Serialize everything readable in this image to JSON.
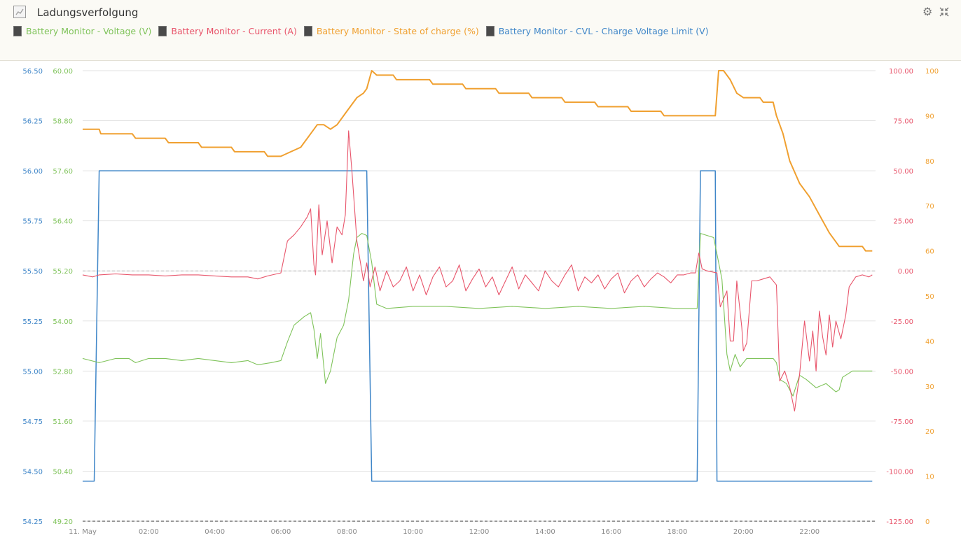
{
  "header": {
    "title": "Ladungsverfolgung",
    "settings_icon": "gear-icon",
    "collapse_icon": "collapse-icon"
  },
  "legend": [
    {
      "label": "Battery Monitor - Voltage (V)",
      "color": "#7fc35a"
    },
    {
      "label": "Battery Monitor - Current (A)",
      "color": "#e8556b"
    },
    {
      "label": "Battery Monitor - State of charge (%)",
      "color": "#f0a030"
    },
    {
      "label": "Battery Monitor - CVL - Charge Voltage Limit (V)",
      "color": "#3f86c8"
    }
  ],
  "chart_data": {
    "type": "line",
    "x_unit": "hours",
    "xlim": [
      0,
      24
    ],
    "x_ticks": [
      {
        "v": 0,
        "label": "11. May"
      },
      {
        "v": 2,
        "label": "02:00"
      },
      {
        "v": 4,
        "label": "04:00"
      },
      {
        "v": 6,
        "label": "06:00"
      },
      {
        "v": 8,
        "label": "08:00"
      },
      {
        "v": 10,
        "label": "10:00"
      },
      {
        "v": 12,
        "label": "12:00"
      },
      {
        "v": 14,
        "label": "14:00"
      },
      {
        "v": 16,
        "label": "16:00"
      },
      {
        "v": 18,
        "label": "18:00"
      },
      {
        "v": 20,
        "label": "20:00"
      },
      {
        "v": 22,
        "label": "22:00"
      }
    ],
    "axes": {
      "cvl": {
        "min": 54.25,
        "max": 56.5,
        "ticks": [
          "56.50",
          "56.25",
          "56.00",
          "55.75",
          "55.50",
          "55.25",
          "55.00",
          "54.75",
          "54.50",
          "54.25"
        ],
        "color": "#3f86c8"
      },
      "voltage": {
        "min": 49.2,
        "max": 60.0,
        "ticks": [
          "60.00",
          "58.80",
          "57.60",
          "56.40",
          "55.20",
          "54.00",
          "52.80",
          "51.60",
          "50.40",
          "49.20"
        ],
        "color": "#7fc35a"
      },
      "current": {
        "min": -125,
        "max": 100,
        "ticks": [
          "100.00",
          "75.00",
          "50.00",
          "25.00",
          "0.00",
          "-25.00",
          "-50.00",
          "-75.00",
          "-100.00",
          "-125.00"
        ],
        "color": "#e8556b"
      },
      "soc": {
        "min": 0,
        "max": 100,
        "ticks": [
          "100",
          "90",
          "80",
          "70",
          "60",
          "50",
          "40",
          "30",
          "20",
          "10",
          "0"
        ],
        "color": "#f0a030"
      }
    },
    "series": [
      {
        "name": "Battery Monitor - CVL - Charge Voltage Limit (V)",
        "axis": "cvl",
        "color": "#3f86c8",
        "points": [
          [
            0,
            54.45
          ],
          [
            0.35,
            54.45
          ],
          [
            0.5,
            56.0
          ],
          [
            8.6,
            56.0
          ],
          [
            8.75,
            54.45
          ],
          [
            18.6,
            54.45
          ],
          [
            18.7,
            56.0
          ],
          [
            19.15,
            56.0
          ],
          [
            19.2,
            54.45
          ],
          [
            23.9,
            54.45
          ]
        ]
      },
      {
        "name": "Battery Monitor - Voltage (V)",
        "axis": "voltage",
        "color": "#7fc35a",
        "points": [
          [
            0,
            53.1
          ],
          [
            0.5,
            53.0
          ],
          [
            1.0,
            53.1
          ],
          [
            1.4,
            53.1
          ],
          [
            1.6,
            53.0
          ],
          [
            2.0,
            53.1
          ],
          [
            2.5,
            53.1
          ],
          [
            3.0,
            53.05
          ],
          [
            3.5,
            53.1
          ],
          [
            4.0,
            53.05
          ],
          [
            4.5,
            53.0
          ],
          [
            5.0,
            53.05
          ],
          [
            5.3,
            52.95
          ],
          [
            5.7,
            53.0
          ],
          [
            6.0,
            53.05
          ],
          [
            6.2,
            53.5
          ],
          [
            6.4,
            53.9
          ],
          [
            6.7,
            54.1
          ],
          [
            6.9,
            54.2
          ],
          [
            7.0,
            53.8
          ],
          [
            7.1,
            53.1
          ],
          [
            7.2,
            53.7
          ],
          [
            7.35,
            52.5
          ],
          [
            7.5,
            52.8
          ],
          [
            7.7,
            53.6
          ],
          [
            7.9,
            53.9
          ],
          [
            8.05,
            54.5
          ],
          [
            8.2,
            55.6
          ],
          [
            8.3,
            56.0
          ],
          [
            8.45,
            56.1
          ],
          [
            8.6,
            56.05
          ],
          [
            8.75,
            55.4
          ],
          [
            8.9,
            54.4
          ],
          [
            9.2,
            54.3
          ],
          [
            10,
            54.35
          ],
          [
            11,
            54.35
          ],
          [
            12,
            54.3
          ],
          [
            13,
            54.35
          ],
          [
            14,
            54.3
          ],
          [
            15,
            54.35
          ],
          [
            16,
            54.3
          ],
          [
            17,
            54.35
          ],
          [
            18,
            54.3
          ],
          [
            18.6,
            54.3
          ],
          [
            18.7,
            56.1
          ],
          [
            19.1,
            56.0
          ],
          [
            19.35,
            55.0
          ],
          [
            19.5,
            53.2
          ],
          [
            19.6,
            52.8
          ],
          [
            19.75,
            53.2
          ],
          [
            19.9,
            52.9
          ],
          [
            20.1,
            53.1
          ],
          [
            20.5,
            53.1
          ],
          [
            20.9,
            53.1
          ],
          [
            21.0,
            53.0
          ],
          [
            21.1,
            52.6
          ],
          [
            21.3,
            52.5
          ],
          [
            21.5,
            52.2
          ],
          [
            21.7,
            52.7
          ],
          [
            21.9,
            52.6
          ],
          [
            22.2,
            52.4
          ],
          [
            22.5,
            52.5
          ],
          [
            22.8,
            52.3
          ],
          [
            22.9,
            52.35
          ],
          [
            23.0,
            52.65
          ],
          [
            23.3,
            52.8
          ],
          [
            23.6,
            52.8
          ],
          [
            23.9,
            52.8
          ]
        ]
      },
      {
        "name": "Battery Monitor - Current (A)",
        "axis": "current",
        "color": "#e8556b",
        "points": [
          [
            0,
            -2
          ],
          [
            0.3,
            -3
          ],
          [
            0.5,
            -2
          ],
          [
            1.0,
            -1.5
          ],
          [
            1.5,
            -2
          ],
          [
            2.0,
            -2
          ],
          [
            2.5,
            -2.5
          ],
          [
            3.0,
            -2
          ],
          [
            3.5,
            -2
          ],
          [
            4.0,
            -2.5
          ],
          [
            4.5,
            -3
          ],
          [
            5.0,
            -3
          ],
          [
            5.3,
            -4
          ],
          [
            5.6,
            -2.5
          ],
          [
            6.0,
            -1
          ],
          [
            6.2,
            15
          ],
          [
            6.4,
            18
          ],
          [
            6.6,
            22
          ],
          [
            6.8,
            27
          ],
          [
            6.9,
            31
          ],
          [
            7.0,
            3
          ],
          [
            7.05,
            -2
          ],
          [
            7.15,
            33
          ],
          [
            7.25,
            8
          ],
          [
            7.4,
            25
          ],
          [
            7.55,
            4
          ],
          [
            7.7,
            22
          ],
          [
            7.85,
            18
          ],
          [
            7.95,
            28
          ],
          [
            8.05,
            70
          ],
          [
            8.15,
            50
          ],
          [
            8.3,
            15
          ],
          [
            8.5,
            -5
          ],
          [
            8.6,
            4
          ],
          [
            8.7,
            -8
          ],
          [
            8.85,
            2
          ],
          [
            9.0,
            -10
          ],
          [
            9.2,
            0
          ],
          [
            9.4,
            -8
          ],
          [
            9.6,
            -5
          ],
          [
            9.8,
            2
          ],
          [
            10,
            -10
          ],
          [
            10.2,
            -2
          ],
          [
            10.4,
            -12
          ],
          [
            10.6,
            -3
          ],
          [
            10.8,
            2
          ],
          [
            11,
            -8
          ],
          [
            11.2,
            -5
          ],
          [
            11.4,
            3
          ],
          [
            11.6,
            -10
          ],
          [
            11.8,
            -4
          ],
          [
            12,
            1
          ],
          [
            12.2,
            -8
          ],
          [
            12.4,
            -3
          ],
          [
            12.6,
            -12
          ],
          [
            12.8,
            -5
          ],
          [
            13,
            2
          ],
          [
            13.2,
            -9
          ],
          [
            13.4,
            -2
          ],
          [
            13.6,
            -6
          ],
          [
            13.8,
            -10
          ],
          [
            14,
            0
          ],
          [
            14.2,
            -5
          ],
          [
            14.4,
            -8
          ],
          [
            14.6,
            -2
          ],
          [
            14.8,
            3
          ],
          [
            15,
            -10
          ],
          [
            15.2,
            -3
          ],
          [
            15.4,
            -6
          ],
          [
            15.6,
            -2
          ],
          [
            15.8,
            -9
          ],
          [
            16,
            -4
          ],
          [
            16.2,
            -1
          ],
          [
            16.4,
            -11
          ],
          [
            16.6,
            -5
          ],
          [
            16.8,
            -2
          ],
          [
            17,
            -8
          ],
          [
            17.2,
            -4
          ],
          [
            17.4,
            -1
          ],
          [
            17.6,
            -3
          ],
          [
            17.8,
            -6
          ],
          [
            18,
            -2
          ],
          [
            18.2,
            -2
          ],
          [
            18.4,
            -1
          ],
          [
            18.55,
            -1
          ],
          [
            18.65,
            9
          ],
          [
            18.75,
            1
          ],
          [
            18.9,
            0
          ],
          [
            19.2,
            -1
          ],
          [
            19.3,
            -18
          ],
          [
            19.5,
            -10
          ],
          [
            19.6,
            -35
          ],
          [
            19.7,
            -35
          ],
          [
            19.8,
            -5
          ],
          [
            19.95,
            -28
          ],
          [
            20.0,
            -40
          ],
          [
            20.1,
            -36
          ],
          [
            20.25,
            -5
          ],
          [
            20.4,
            -5
          ],
          [
            20.6,
            -4
          ],
          [
            20.8,
            -3
          ],
          [
            21.0,
            -7
          ],
          [
            21.1,
            -55
          ],
          [
            21.25,
            -50
          ],
          [
            21.4,
            -58
          ],
          [
            21.55,
            -70
          ],
          [
            21.7,
            -52
          ],
          [
            21.85,
            -25
          ],
          [
            22.0,
            -45
          ],
          [
            22.1,
            -30
          ],
          [
            22.2,
            -50
          ],
          [
            22.3,
            -20
          ],
          [
            22.4,
            -33
          ],
          [
            22.5,
            -42
          ],
          [
            22.6,
            -22
          ],
          [
            22.7,
            -38
          ],
          [
            22.8,
            -25
          ],
          [
            22.95,
            -34
          ],
          [
            23.1,
            -22
          ],
          [
            23.2,
            -8
          ],
          [
            23.4,
            -3
          ],
          [
            23.6,
            -2
          ],
          [
            23.8,
            -3
          ],
          [
            23.9,
            -2
          ]
        ]
      },
      {
        "name": "Battery Monitor - State of charge (%)",
        "axis": "soc",
        "color": "#f0a030",
        "points": [
          [
            0,
            87
          ],
          [
            0.5,
            87
          ],
          [
            0.55,
            86
          ],
          [
            1.5,
            86
          ],
          [
            1.6,
            85
          ],
          [
            2.5,
            85
          ],
          [
            2.6,
            84
          ],
          [
            3.5,
            84
          ],
          [
            3.6,
            83
          ],
          [
            4.5,
            83
          ],
          [
            4.6,
            82
          ],
          [
            5.5,
            82
          ],
          [
            5.6,
            81
          ],
          [
            6.0,
            81
          ],
          [
            6.3,
            82
          ],
          [
            6.6,
            83
          ],
          [
            6.9,
            86
          ],
          [
            7.1,
            88
          ],
          [
            7.3,
            88
          ],
          [
            7.5,
            87
          ],
          [
            7.7,
            88
          ],
          [
            7.9,
            90
          ],
          [
            8.1,
            92
          ],
          [
            8.3,
            94
          ],
          [
            8.5,
            95
          ],
          [
            8.6,
            96
          ],
          [
            8.75,
            100
          ],
          [
            8.9,
            99
          ],
          [
            9.4,
            99
          ],
          [
            9.5,
            98
          ],
          [
            10.5,
            98
          ],
          [
            10.6,
            97
          ],
          [
            11.5,
            97
          ],
          [
            11.6,
            96
          ],
          [
            12.5,
            96
          ],
          [
            12.6,
            95
          ],
          [
            13.5,
            95
          ],
          [
            13.6,
            94
          ],
          [
            14.5,
            94
          ],
          [
            14.6,
            93
          ],
          [
            15.5,
            93
          ],
          [
            15.6,
            92
          ],
          [
            16.5,
            92
          ],
          [
            16.6,
            91
          ],
          [
            17.5,
            91
          ],
          [
            17.6,
            90
          ],
          [
            18.5,
            90
          ],
          [
            19.15,
            90
          ],
          [
            19.25,
            100
          ],
          [
            19.4,
            100
          ],
          [
            19.6,
            98
          ],
          [
            19.8,
            95
          ],
          [
            20.0,
            94
          ],
          [
            20.5,
            94
          ],
          [
            20.6,
            93
          ],
          [
            20.9,
            93
          ],
          [
            21.0,
            90
          ],
          [
            21.2,
            86
          ],
          [
            21.4,
            80
          ],
          [
            21.7,
            75
          ],
          [
            22.0,
            72
          ],
          [
            22.3,
            68
          ],
          [
            22.6,
            64
          ],
          [
            22.9,
            61
          ],
          [
            23.0,
            61
          ],
          [
            23.6,
            61
          ],
          [
            23.7,
            60
          ],
          [
            23.9,
            60
          ]
        ]
      }
    ]
  }
}
